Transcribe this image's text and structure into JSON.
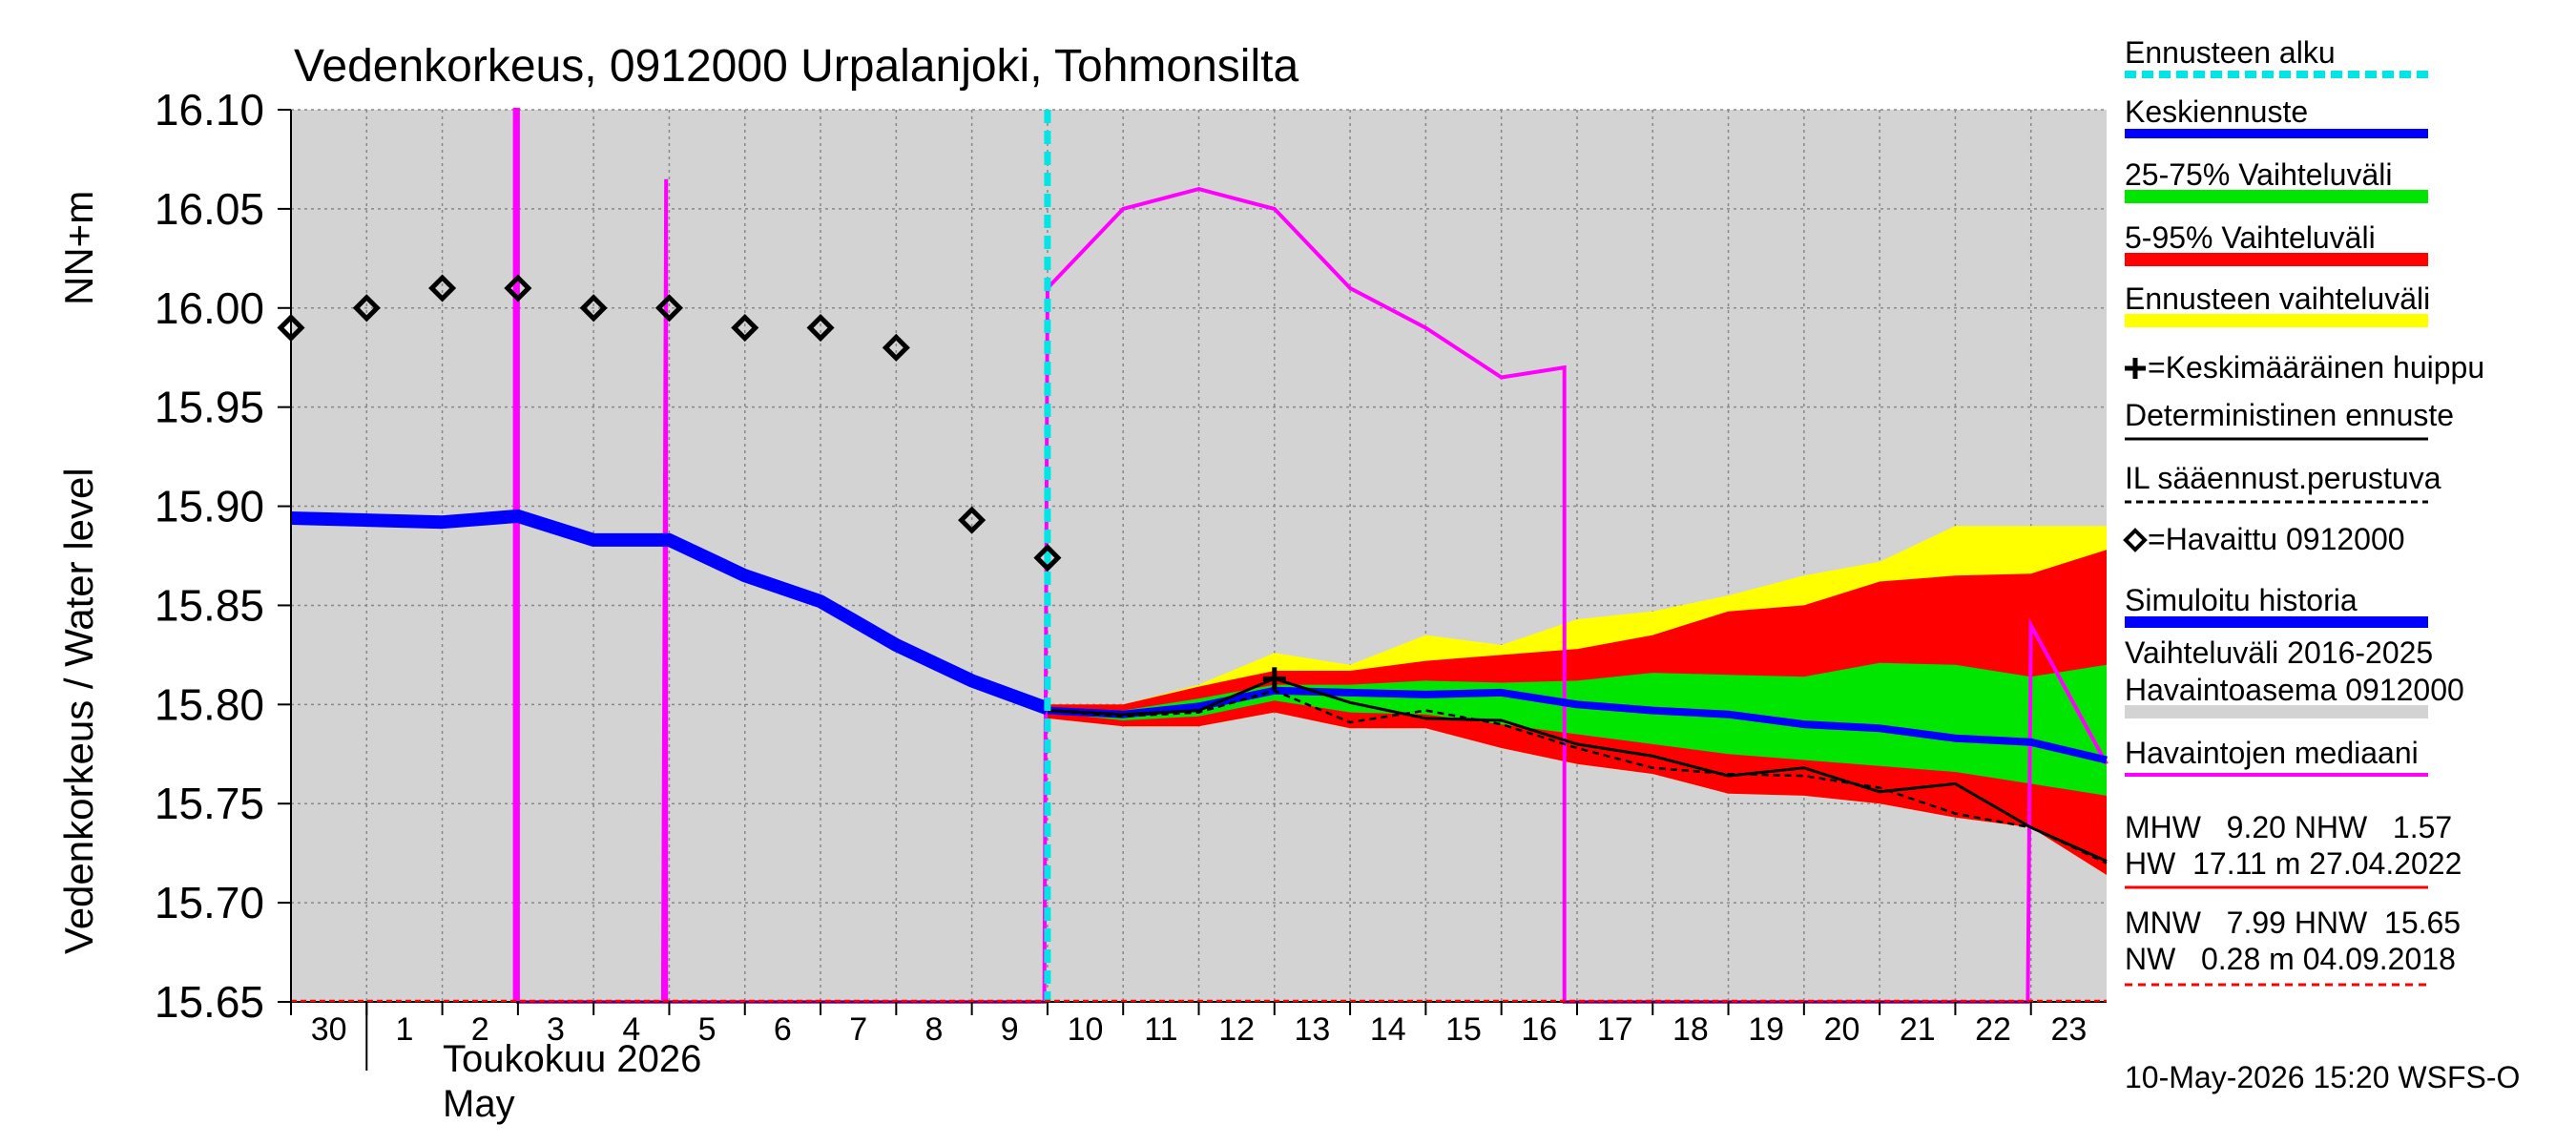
{
  "chart_data": {
    "type": "line",
    "title": "Vedenkorkeus, 0912000 Urpalanjoki, Tohmonsilta",
    "ylabel": "Vedenkorkeus / Water level",
    "yunit": "NN+m",
    "ylim": [
      15.65,
      16.1
    ],
    "yticks": [
      "16.10",
      "16.05",
      "16.00",
      "15.95",
      "15.90",
      "15.85",
      "15.80",
      "15.75",
      "15.70",
      "15.65"
    ],
    "xlim": [
      "2026-04-30",
      "2026-05-24"
    ],
    "xticks": [
      {
        "date": "2026-04-30",
        "label": "30"
      },
      {
        "date": "2026-05-01",
        "label": "1"
      },
      {
        "date": "2026-05-02",
        "label": "2"
      },
      {
        "date": "2026-05-03",
        "label": "3"
      },
      {
        "date": "2026-05-04",
        "label": "4"
      },
      {
        "date": "2026-05-05",
        "label": "5"
      },
      {
        "date": "2026-05-06",
        "label": "6"
      },
      {
        "date": "2026-05-07",
        "label": "7"
      },
      {
        "date": "2026-05-08",
        "label": "8"
      },
      {
        "date": "2026-05-09",
        "label": "9"
      },
      {
        "date": "2026-05-10",
        "label": "10"
      },
      {
        "date": "2026-05-11",
        "label": "11"
      },
      {
        "date": "2026-05-12",
        "label": "12"
      },
      {
        "date": "2026-05-13",
        "label": "13"
      },
      {
        "date": "2026-05-14",
        "label": "14"
      },
      {
        "date": "2026-05-15",
        "label": "15"
      },
      {
        "date": "2026-05-16",
        "label": "16"
      },
      {
        "date": "2026-05-17",
        "label": "17"
      },
      {
        "date": "2026-05-18",
        "label": "18"
      },
      {
        "date": "2026-05-19",
        "label": "19"
      },
      {
        "date": "2026-05-20",
        "label": "20"
      },
      {
        "date": "2026-05-21",
        "label": "21"
      },
      {
        "date": "2026-05-22",
        "label": "22"
      },
      {
        "date": "2026-05-23",
        "label": "23"
      }
    ],
    "month_label_fi": "Toukokuu  2026",
    "month_label_en": "May",
    "grid": true,
    "forecast_start": "2026-05-10",
    "colors": {
      "background": "#d3d3d3",
      "forecast_start": "#00e5e5",
      "median_forecast": "#0000ff",
      "band_25_75": "#00e600",
      "band_5_95": "#ff0000",
      "band_full": "#ffff00",
      "deterministic": "#000000",
      "observation_median": "#ff00ff",
      "range_history": "#d3d3d3",
      "nw_line": "#ff0000"
    },
    "band_x": [
      "2026-05-10",
      "2026-05-11",
      "2026-05-12",
      "2026-05-13",
      "2026-05-14",
      "2026-05-15",
      "2026-05-16",
      "2026-05-17",
      "2026-05-18",
      "2026-05-19",
      "2026-05-20",
      "2026-05-21",
      "2026-05-22",
      "2026-05-23",
      "2026-05-24"
    ],
    "band_full": {
      "upper": [
        15.8,
        15.8,
        15.81,
        15.826,
        15.82,
        15.835,
        15.83,
        15.843,
        15.847,
        15.855,
        15.865,
        15.872,
        15.89,
        15.89,
        15.89
      ],
      "lower": [
        15.793,
        15.789,
        15.789,
        15.796,
        15.788,
        15.788,
        15.778,
        15.77,
        15.765,
        15.755,
        15.754,
        15.75,
        15.743,
        15.738,
        15.714
      ]
    },
    "band_5_95": {
      "upper": [
        15.8,
        15.8,
        15.809,
        15.817,
        15.817,
        15.822,
        15.825,
        15.828,
        15.835,
        15.847,
        15.85,
        15.862,
        15.865,
        15.866,
        15.878
      ]
    },
    "band_25_75": {
      "upper": [
        15.798,
        15.797,
        15.803,
        15.81,
        15.81,
        15.812,
        15.811,
        15.812,
        15.816,
        15.815,
        15.814,
        15.821,
        15.82,
        15.814,
        15.82
      ],
      "lower": [
        15.796,
        15.792,
        15.794,
        15.802,
        15.796,
        15.795,
        15.79,
        15.785,
        15.78,
        15.775,
        15.772,
        15.769,
        15.766,
        15.76,
        15.754
      ]
    },
    "median_forecast": {
      "values": [
        15.797,
        15.795,
        15.799,
        15.807,
        15.806,
        15.805,
        15.806,
        15.8,
        15.797,
        15.795,
        15.79,
        15.788,
        15.783,
        15.781,
        15.772
      ]
    },
    "deterministic": {
      "values": [
        15.797,
        15.795,
        15.797,
        15.813,
        15.801,
        15.793,
        15.792,
        15.78,
        15.774,
        15.764,
        15.768,
        15.756,
        15.76,
        15.738,
        15.721
      ]
    },
    "il_forecast": {
      "values": [
        15.797,
        15.794,
        15.796,
        15.807,
        15.791,
        15.797,
        15.79,
        15.778,
        15.768,
        15.765,
        15.764,
        15.758,
        15.745,
        15.738,
        15.72
      ]
    },
    "mean_peak": {
      "date": "2026-05-13",
      "value": 15.813
    },
    "simulated_history": {
      "x": [
        "2026-04-30",
        "2026-05-01",
        "2026-05-02",
        "2026-05-03",
        "2026-05-04",
        "2026-05-05",
        "2026-05-06",
        "2026-05-07",
        "2026-05-08",
        "2026-05-09",
        "2026-05-10"
      ],
      "values": [
        15.894,
        15.893,
        15.892,
        15.895,
        15.883,
        15.883,
        15.865,
        15.852,
        15.83,
        15.812,
        15.798
      ]
    },
    "observations": {
      "x": [
        "2026-04-30",
        "2026-05-01",
        "2026-05-02",
        "2026-05-03",
        "2026-05-04",
        "2026-05-05",
        "2026-05-06",
        "2026-05-07",
        "2026-05-08",
        "2026-05-09",
        "2026-05-10"
      ],
      "values": [
        15.99,
        16.0,
        16.01,
        16.01,
        16.0,
        16.0,
        15.99,
        15.99,
        15.98,
        15.893,
        15.874
      ]
    },
    "observation_median": {
      "points": [
        [
          "2026-05-02 23:00",
          15.65
        ],
        [
          "2026-05-02 23:00",
          16.1
        ],
        [
          "2026-05-03 00:00",
          16.1
        ],
        [
          "2026-05-03 00:00",
          15.65
        ],
        [
          "2026-05-04 22:00",
          15.65
        ],
        [
          "2026-05-04 23:00",
          16.065
        ],
        [
          "2026-05-04 23:00",
          15.65
        ],
        [
          "2026-05-09 23:00",
          15.65
        ],
        [
          "2026-05-10 00:00",
          16.01
        ],
        [
          "2026-05-11",
          16.05
        ],
        [
          "2026-05-12",
          16.06
        ],
        [
          "2026-05-13",
          16.05
        ],
        [
          "2026-05-14",
          16.01
        ],
        [
          "2026-05-15",
          15.99
        ],
        [
          "2026-05-16",
          15.965
        ],
        [
          "2026-05-16 20:00",
          15.97
        ],
        [
          "2026-05-16 20:00",
          15.65
        ],
        [
          "2026-05-22 23:00",
          15.65
        ],
        [
          "2026-05-23 00:00",
          15.84
        ],
        [
          "2026-05-24",
          15.77
        ]
      ]
    },
    "legend": [
      {
        "label": "Ennusteen alku",
        "style": "forecast_start"
      },
      {
        "label": "Keskiennuste",
        "style": "median_forecast"
      },
      {
        "label": "25-75% Vaihteluväli",
        "style": "band_25_75"
      },
      {
        "label": "5-95% Vaihteluväli",
        "style": "band_5_95"
      },
      {
        "label": "Ennusteen vaihteluväli",
        "style": "band_full"
      },
      {
        "label": "=Keskimääräinen huippu",
        "style": "mean_peak"
      },
      {
        "label": "Deterministinen ennuste",
        "style": "deterministic"
      },
      {
        "label": "IL sääennust.perustuva",
        "style": "il_forecast"
      },
      {
        "label": "=Havaittu 0912000",
        "style": "observations"
      },
      {
        "label": "Simuloitu historia",
        "style": "simulated_history"
      },
      {
        "label": "Vaihteluväli 2016-2025",
        "style": "range_text"
      },
      {
        "label": "Havaintoasema 0912000",
        "style": "range_history"
      },
      {
        "label": "Havaintojen mediaani",
        "style": "observation_median"
      }
    ],
    "stats": {
      "line1": "MHW   9.20 NHW   1.57",
      "line2": "HW  17.11 m 27.04.2022",
      "line3": "MNW   7.99 HNW  15.65",
      "line4": "NW   0.28 m 04.09.2018"
    },
    "timestamp": "10-May-2026 15:20 WSFS-O"
  }
}
